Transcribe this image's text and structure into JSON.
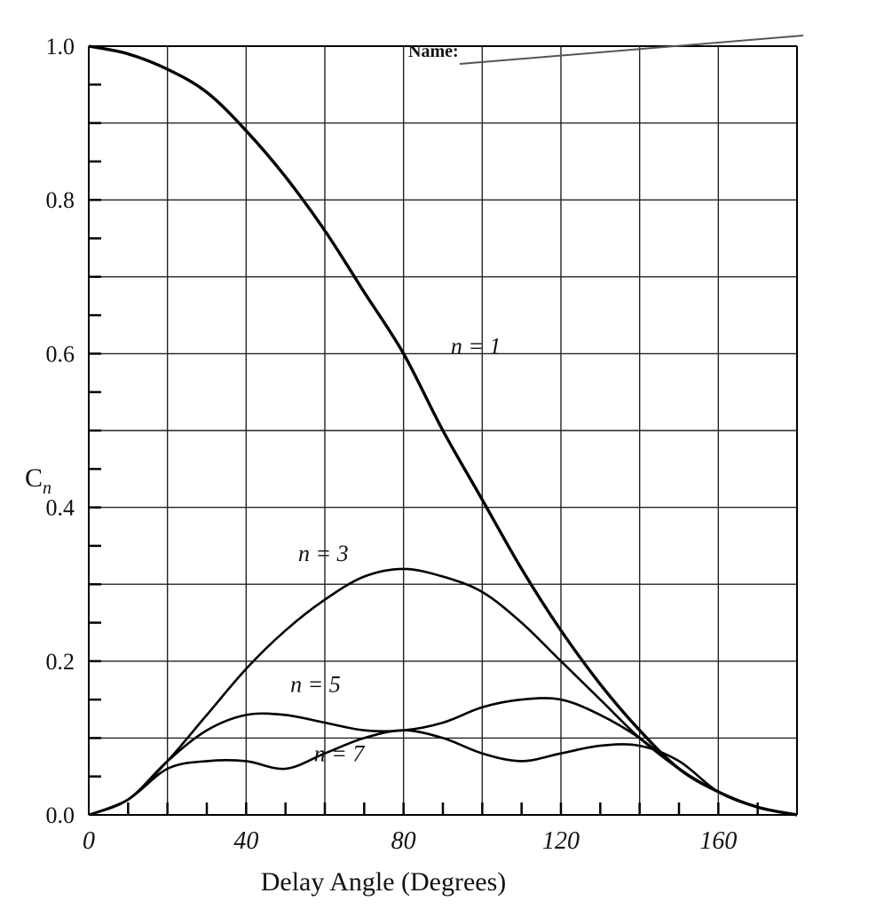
{
  "header": {
    "name_label": "Name:"
  },
  "chart_data": {
    "type": "line",
    "title": "",
    "xlabel": "Delay Angle (Degrees)",
    "ylabel": "C",
    "ylabel_subscript": "n",
    "xlim": [
      0,
      180
    ],
    "ylim": [
      0,
      1.0
    ],
    "x_ticks": [
      {
        "value": 0,
        "label": "0"
      },
      {
        "value": 40,
        "label": "40"
      },
      {
        "value": 80,
        "label": "80"
      },
      {
        "value": 120,
        "label": "120"
      },
      {
        "value": 160,
        "label": "160"
      }
    ],
    "y_ticks": [
      {
        "value": 0.0,
        "label": "0.0"
      },
      {
        "value": 0.2,
        "label": "0.2"
      },
      {
        "value": 0.4,
        "label": "0.4"
      },
      {
        "value": 0.6,
        "label": "0.6"
      },
      {
        "value": 0.8,
        "label": "0.8"
      },
      {
        "value": 1.0,
        "label": "1.0"
      }
    ],
    "grid": true,
    "series": [
      {
        "name": "n = 1",
        "x": [
          0,
          10,
          20,
          30,
          40,
          50,
          60,
          70,
          80,
          90,
          100,
          110,
          120,
          130,
          140,
          150,
          160,
          170,
          180
        ],
        "y": [
          1.0,
          0.99,
          0.97,
          0.94,
          0.89,
          0.83,
          0.76,
          0.68,
          0.6,
          0.5,
          0.41,
          0.32,
          0.24,
          0.17,
          0.11,
          0.06,
          0.03,
          0.01,
          0.0
        ]
      },
      {
        "name": "n = 3",
        "x": [
          0,
          10,
          20,
          30,
          40,
          50,
          60,
          70,
          80,
          90,
          100,
          110,
          120,
          130,
          140,
          150,
          160,
          170,
          180
        ],
        "y": [
          0.0,
          0.02,
          0.07,
          0.13,
          0.19,
          0.24,
          0.28,
          0.31,
          0.32,
          0.31,
          0.29,
          0.25,
          0.2,
          0.15,
          0.1,
          0.06,
          0.03,
          0.01,
          0.0
        ]
      },
      {
        "name": "n = 5",
        "x": [
          0,
          10,
          20,
          30,
          40,
          50,
          60,
          70,
          80,
          90,
          100,
          110,
          120,
          130,
          140,
          150,
          160,
          170,
          180
        ],
        "y": [
          0.0,
          0.02,
          0.07,
          0.11,
          0.13,
          0.13,
          0.12,
          0.11,
          0.11,
          0.12,
          0.14,
          0.15,
          0.15,
          0.13,
          0.1,
          0.06,
          0.03,
          0.01,
          0.0
        ]
      },
      {
        "name": "n = 7",
        "x": [
          0,
          10,
          20,
          30,
          40,
          50,
          60,
          70,
          80,
          90,
          100,
          110,
          120,
          130,
          140,
          150,
          160,
          170,
          180
        ],
        "y": [
          0.0,
          0.02,
          0.06,
          0.07,
          0.07,
          0.06,
          0.08,
          0.1,
          0.11,
          0.1,
          0.08,
          0.07,
          0.08,
          0.09,
          0.09,
          0.07,
          0.03,
          0.01,
          0.0
        ]
      }
    ]
  }
}
